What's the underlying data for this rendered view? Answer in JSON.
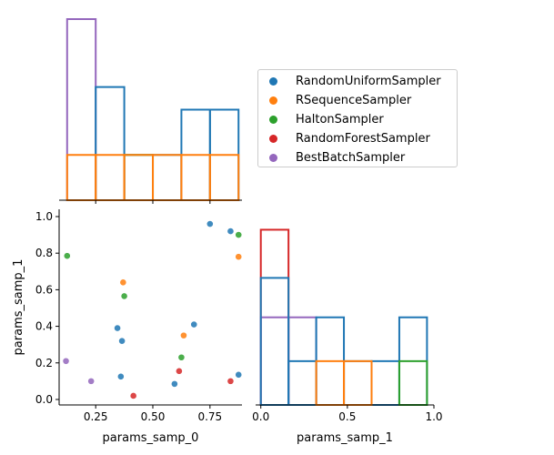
{
  "chart_data": {
    "type": "scatter",
    "samplers": [
      {
        "name": "RandomUniformSampler",
        "color": "#1f77b4"
      },
      {
        "name": "RSequenceSampler",
        "color": "#ff7f0e"
      },
      {
        "name": "HaltonSampler",
        "color": "#2ca02c"
      },
      {
        "name": "RandomForestSampler",
        "color": "#d62728"
      },
      {
        "name": "BestBatchSampler",
        "color": "#9467bd"
      }
    ],
    "scatter": {
      "xlabel": "params_samp_0",
      "ylabel": "params_samp_1",
      "xlim": [
        0.09,
        0.89
      ],
      "ylim": [
        -0.03,
        1.0
      ],
      "xticks": [
        0.25,
        0.5,
        0.75
      ],
      "xticklabels": [
        "0.25",
        "0.50",
        "0.75"
      ],
      "yticks": [
        0.0,
        0.2,
        0.4,
        0.6,
        0.8,
        1.0
      ],
      "yticklabels": [
        "0.0",
        "0.2",
        "0.4",
        "0.6",
        "0.8",
        "1.0"
      ],
      "points": [
        {
          "s": 0,
          "x": 0.75,
          "y": 0.96
        },
        {
          "s": 0,
          "x": 0.84,
          "y": 0.92
        },
        {
          "s": 0,
          "x": 0.345,
          "y": 0.39
        },
        {
          "s": 0,
          "x": 0.365,
          "y": 0.32
        },
        {
          "s": 0,
          "x": 0.68,
          "y": 0.41
        },
        {
          "s": 0,
          "x": 0.36,
          "y": 0.125
        },
        {
          "s": 0,
          "x": 0.595,
          "y": 0.085
        },
        {
          "s": 0,
          "x": 0.875,
          "y": 0.135
        },
        {
          "s": 1,
          "x": 0.37,
          "y": 0.64
        },
        {
          "s": 1,
          "x": 0.875,
          "y": 0.78
        },
        {
          "s": 1,
          "x": 0.635,
          "y": 0.35
        },
        {
          "s": 2,
          "x": 0.125,
          "y": 0.785
        },
        {
          "s": 2,
          "x": 0.875,
          "y": 0.9
        },
        {
          "s": 2,
          "x": 0.375,
          "y": 0.565
        },
        {
          "s": 2,
          "x": 0.625,
          "y": 0.23
        },
        {
          "s": 3,
          "x": 0.615,
          "y": 0.155
        },
        {
          "s": 3,
          "x": 0.415,
          "y": 0.02
        },
        {
          "s": 3,
          "x": 0.84,
          "y": 0.1
        },
        {
          "s": 4,
          "x": 0.12,
          "y": 0.21
        },
        {
          "s": 4,
          "x": 0.23,
          "y": 0.1
        }
      ]
    },
    "hist_x": {
      "xlim": [
        0.09,
        0.89
      ],
      "max_count": 4,
      "series": [
        {
          "s": 0,
          "bins": [
            [
              0.25,
              0.375,
              2.5
            ],
            [
              0.375,
              0.5,
              1
            ],
            [
              0.5,
              0.625,
              1
            ],
            [
              0.625,
              0.75,
              2
            ],
            [
              0.75,
              0.875,
              2
            ]
          ]
        },
        {
          "s": 1,
          "bins": [
            [
              0.125,
              0.25,
              1
            ],
            [
              0.25,
              0.375,
              1
            ],
            [
              0.375,
              0.5,
              1
            ],
            [
              0.5,
              0.625,
              1
            ],
            [
              0.625,
              0.75,
              1
            ],
            [
              0.75,
              0.875,
              1
            ]
          ]
        },
        {
          "s": 2,
          "bins": [
            [
              0.375,
              0.5,
              1
            ]
          ]
        },
        {
          "s": 4,
          "bins": [
            [
              0.125,
              0.25,
              4
            ]
          ]
        }
      ]
    },
    "hist_y": {
      "xlabel": "params_samp_1",
      "xlim": [
        -0.03,
        1.0
      ],
      "xticks": [
        0.0,
        0.5,
        1.0
      ],
      "xticklabels": [
        "0.0",
        "0.5",
        "1.0"
      ],
      "max_count": 4.3,
      "series": [
        {
          "s": 0,
          "bins": [
            [
              0.0,
              0.16,
              2.9
            ],
            [
              0.16,
              0.32,
              1
            ],
            [
              0.32,
              0.48,
              2
            ],
            [
              0.48,
              0.64,
              1
            ],
            [
              0.64,
              0.8,
              1
            ],
            [
              0.8,
              0.96,
              2
            ]
          ]
        },
        {
          "s": 1,
          "bins": [
            [
              0.32,
              0.48,
              1
            ],
            [
              0.48,
              0.64,
              1
            ]
          ]
        },
        {
          "s": 2,
          "bins": [
            [
              0.8,
              0.96,
              1
            ]
          ]
        },
        {
          "s": 3,
          "bins": [
            [
              0.0,
              0.16,
              4
            ]
          ]
        },
        {
          "s": 4,
          "bins": [
            [
              0.0,
              0.16,
              2
            ],
            [
              0.16,
              0.32,
              2
            ]
          ]
        }
      ]
    }
  }
}
